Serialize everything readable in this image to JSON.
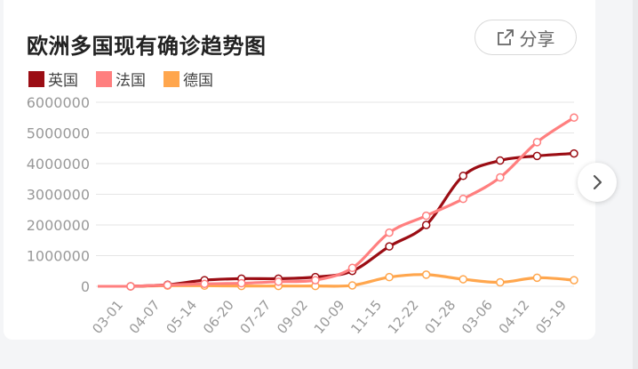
{
  "card": {
    "title": "欧洲多国现有确诊趋势图",
    "share_label": "分享"
  },
  "colors": {
    "uk": "#9b0d14",
    "france": "#ff7f7f",
    "germany": "#ffa64d",
    "grid": "#e6e6e6",
    "axis_text": "#999999"
  },
  "icons": {
    "share": "share-arrow-icon",
    "next": "chevron-right-icon"
  },
  "chart_data": {
    "type": "line",
    "title": "欧洲多国现有确诊趋势图",
    "x": [
      "03-01",
      "04-07",
      "05-14",
      "06-20",
      "07-27",
      "09-02",
      "10-09",
      "11-15",
      "12-22",
      "01-28",
      "03-06",
      "04-12",
      "05-19"
    ],
    "y_ticks": [
      "6000000",
      "5000000",
      "4000000",
      "3000000",
      "2000000",
      "1000000",
      "0"
    ],
    "ylim": [
      0,
      6000000
    ],
    "grid": true,
    "legend": "top-left",
    "series": [
      {
        "name": "英国",
        "key": "uk",
        "values": [
          0,
          50000,
          200000,
          250000,
          250000,
          300000,
          500000,
          1300000,
          2000000,
          3600000,
          4100000,
          4250000,
          4330000
        ]
      },
      {
        "name": "法国",
        "key": "france",
        "values": [
          0,
          40000,
          80000,
          100000,
          150000,
          200000,
          600000,
          1750000,
          2300000,
          2850000,
          3550000,
          4700000,
          5500000
        ]
      },
      {
        "name": "德国",
        "key": "germany",
        "values": [
          0,
          20000,
          20000,
          10000,
          10000,
          10000,
          30000,
          300000,
          380000,
          230000,
          130000,
          280000,
          200000
        ]
      }
    ]
  }
}
